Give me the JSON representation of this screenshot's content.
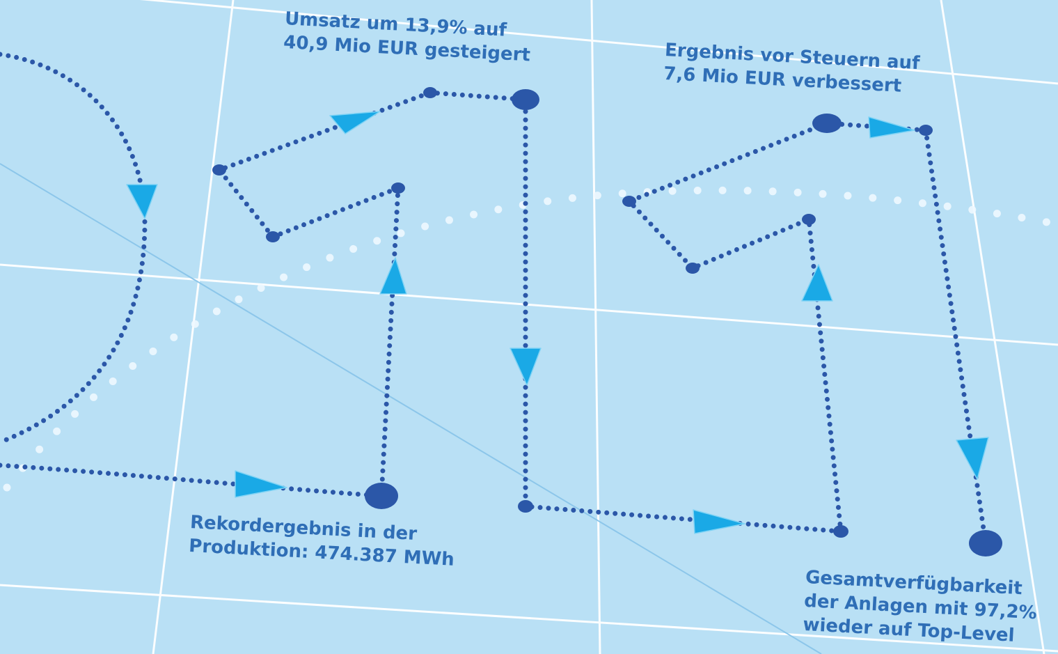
{
  "colors": {
    "background": "#b9e0f5",
    "grid": "#ffffff",
    "path": "#2b57a8",
    "arrow": "#1aa9e6",
    "text": "#2f6eb6"
  },
  "milestones": {
    "revenue": {
      "lines": [
        "Umsatz um 13,9% auf",
        "40,9 Mio EUR gesteigert"
      ]
    },
    "ebt": {
      "lines": [
        "Ergebnis vor Steuern auf",
        "7,6 Mio EUR verbessert"
      ]
    },
    "production": {
      "lines": [
        "Rekordergebnis in der",
        "Produktion: 474.387 MWh"
      ]
    },
    "availability": {
      "lines": [
        "Gesamtverfügbarkeit",
        "der Anlagen mit 97,2%",
        "wieder auf Top-Level"
      ]
    }
  }
}
